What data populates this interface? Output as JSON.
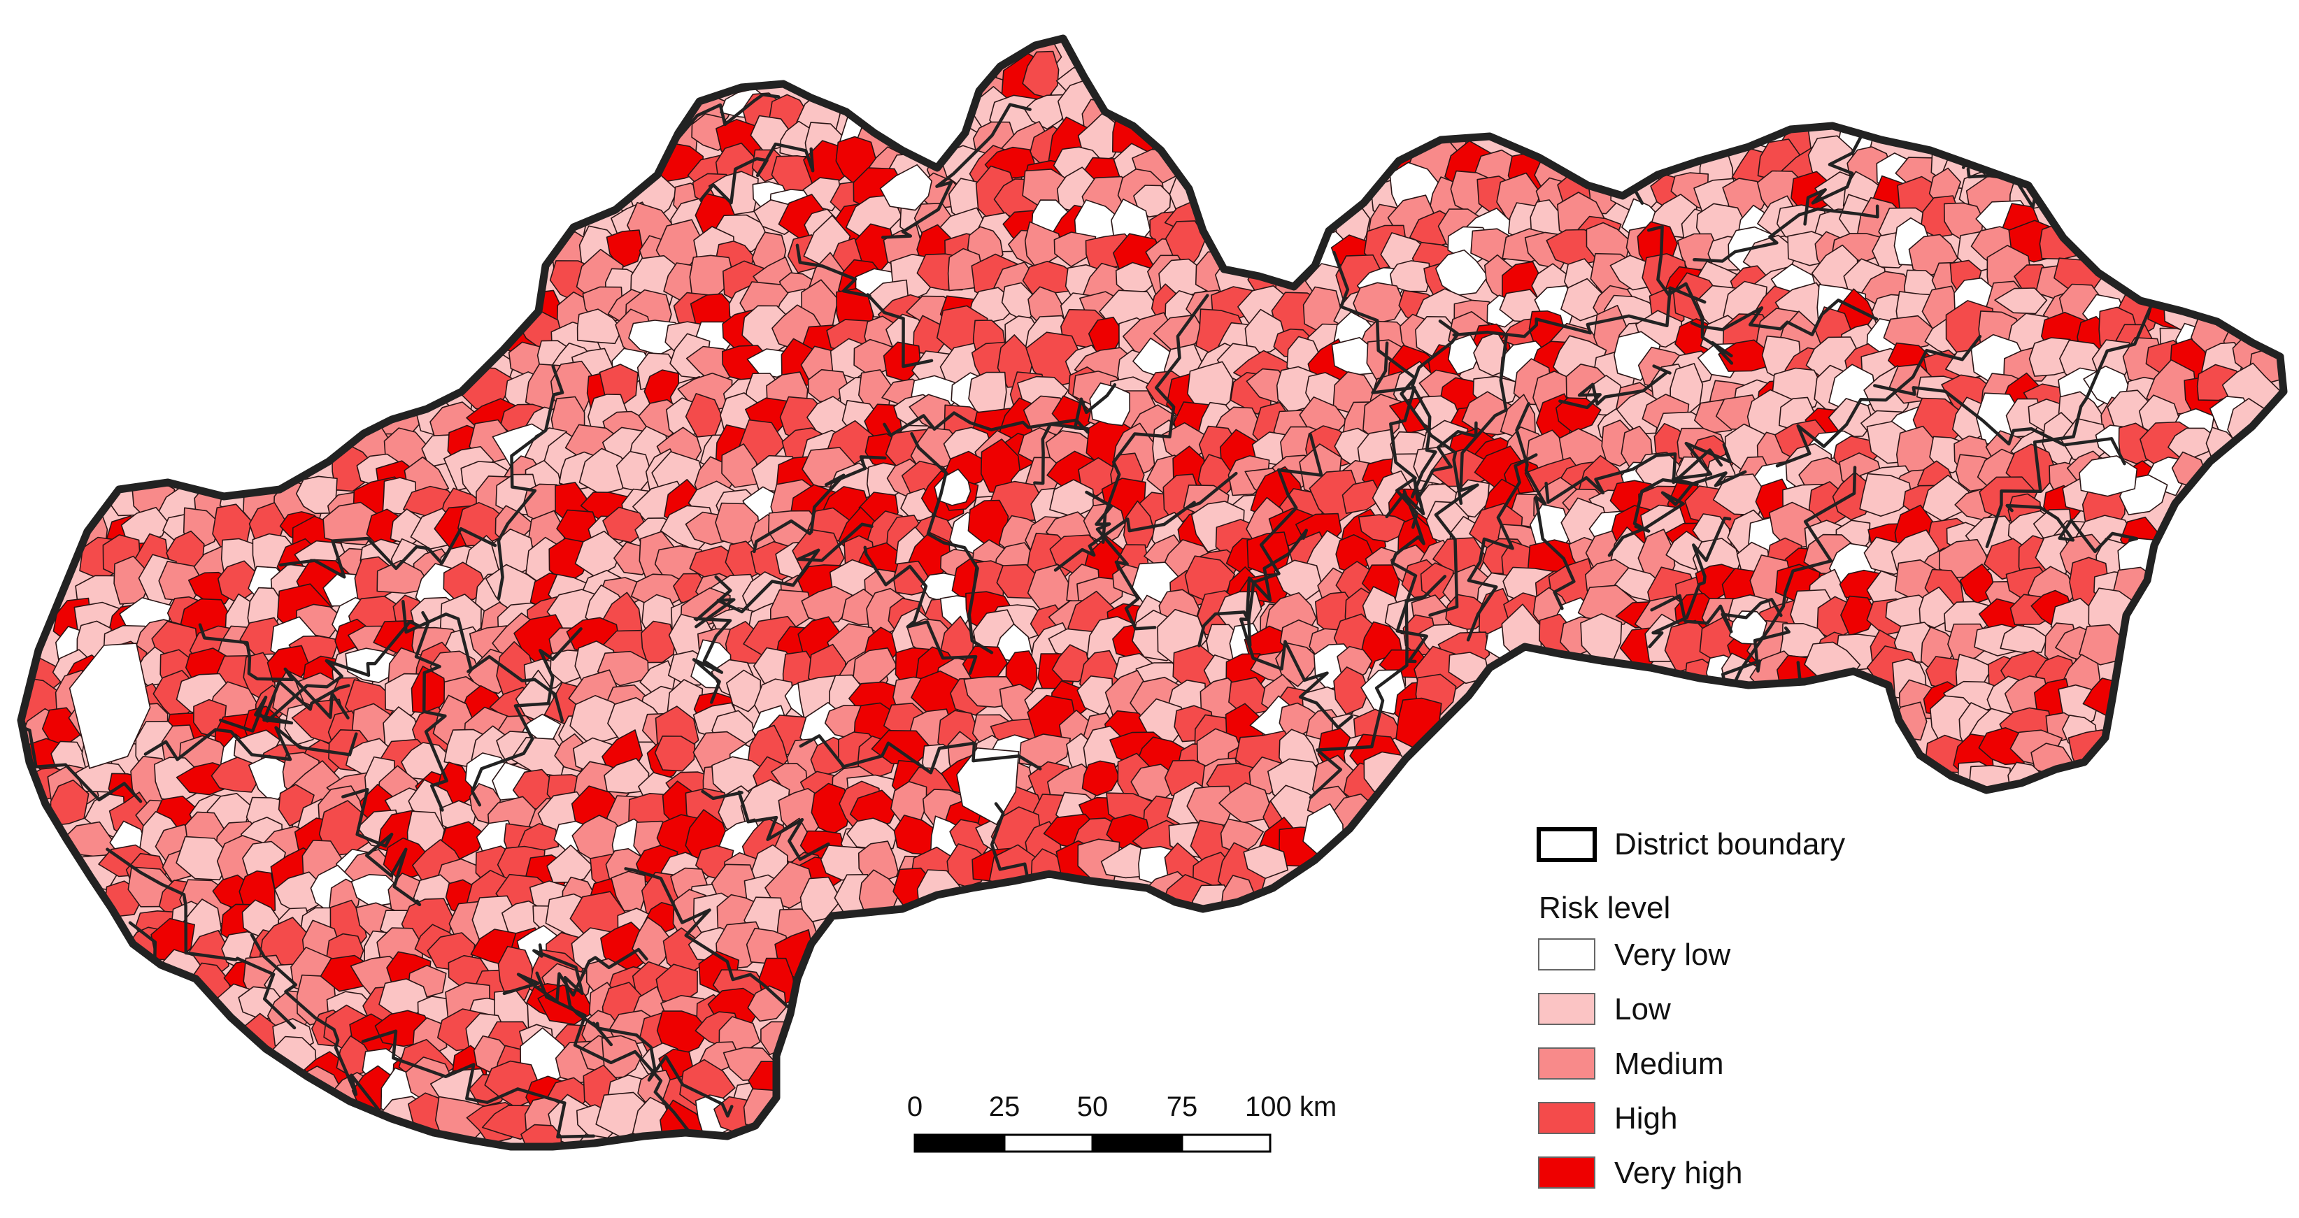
{
  "legend": {
    "boundary_label": "District boundary",
    "title": "Risk level",
    "classes": [
      {
        "label": "Very low",
        "color": "#ffffff"
      },
      {
        "label": "Low",
        "color": "#fbc4c4"
      },
      {
        "label": "Medium",
        "color": "#f88a8a"
      },
      {
        "label": "High",
        "color": "#f44b4b"
      },
      {
        "label": "Very high",
        "color": "#ee0000"
      }
    ]
  },
  "scale_bar": {
    "ticks": [
      "0",
      "25",
      "50",
      "75",
      "100 km"
    ]
  },
  "colors": {
    "district_boundary": "#222222",
    "municipality_boundary": "#2a1515",
    "background": "#ffffff"
  }
}
